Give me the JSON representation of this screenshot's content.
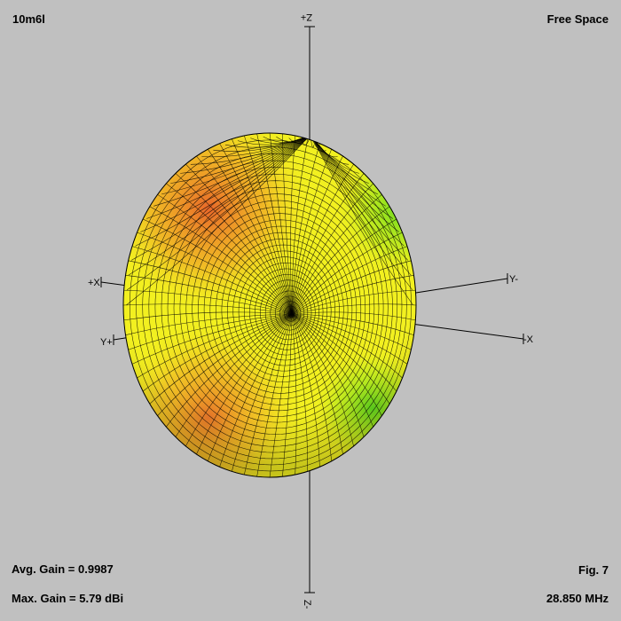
{
  "header": {
    "antenna_name": "10m6l",
    "environment": "Free Space"
  },
  "footer": {
    "avg_gain": "Avg. Gain = 0.9987",
    "max_gain": "Max. Gain = 5.79 dBi",
    "figure": "Fig. 7",
    "frequency": "28.850 MHz"
  },
  "axes": {
    "z_plus": "Z+",
    "z_minus": "Z-",
    "x_plus": "+X",
    "x_minus": "-X",
    "y_plus": "Y+",
    "y_minus": "Y-"
  },
  "colors": {
    "background": "#c0c0c0",
    "surface_high": "#e8602a",
    "surface_mid": "#f2f020",
    "surface_low": "#58d81e",
    "mesh": "#000000"
  }
}
